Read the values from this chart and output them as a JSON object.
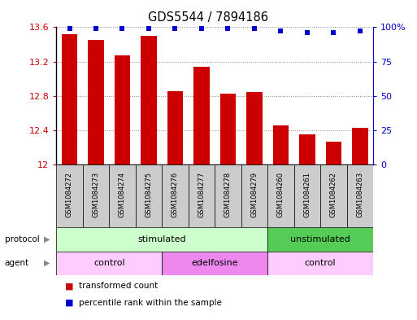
{
  "title": "GDS5544 / 7894186",
  "samples": [
    "GSM1084272",
    "GSM1084273",
    "GSM1084274",
    "GSM1084275",
    "GSM1084276",
    "GSM1084277",
    "GSM1084278",
    "GSM1084279",
    "GSM1084260",
    "GSM1084261",
    "GSM1084262",
    "GSM1084263"
  ],
  "bar_values": [
    13.52,
    13.45,
    13.27,
    13.5,
    12.86,
    13.14,
    12.83,
    12.85,
    12.46,
    12.35,
    12.27,
    12.43
  ],
  "percentile_values": [
    99,
    99,
    99,
    99,
    99,
    99,
    99,
    99,
    97,
    96,
    96,
    97
  ],
  "ymin": 12,
  "ymax": 13.6,
  "yticks": [
    12,
    12.4,
    12.8,
    13.2,
    13.6
  ],
  "y2ticks": [
    0,
    25,
    50,
    75,
    100
  ],
  "bar_color": "#cc0000",
  "dot_color": "#0000cc",
  "protocol_groups": [
    {
      "label": "stimulated",
      "start": 0,
      "end": 8,
      "color": "#ccffcc"
    },
    {
      "label": "unstimulated",
      "start": 8,
      "end": 12,
      "color": "#55cc55"
    }
  ],
  "agent_groups": [
    {
      "label": "control",
      "start": 0,
      "end": 4,
      "color": "#ffccff"
    },
    {
      "label": "edelfosine",
      "start": 4,
      "end": 8,
      "color": "#ee88ee"
    },
    {
      "label": "control",
      "start": 8,
      "end": 12,
      "color": "#ffccff"
    }
  ],
  "sample_bg_color": "#cccccc",
  "legend_items": [
    {
      "color": "#cc0000",
      "label": "transformed count"
    },
    {
      "color": "#0000cc",
      "label": "percentile rank within the sample"
    }
  ],
  "grid_color": "#888888",
  "tick_label_color_left": "#cc0000",
  "tick_label_color_right": "#0000cc",
  "arrow_color": "#888888"
}
